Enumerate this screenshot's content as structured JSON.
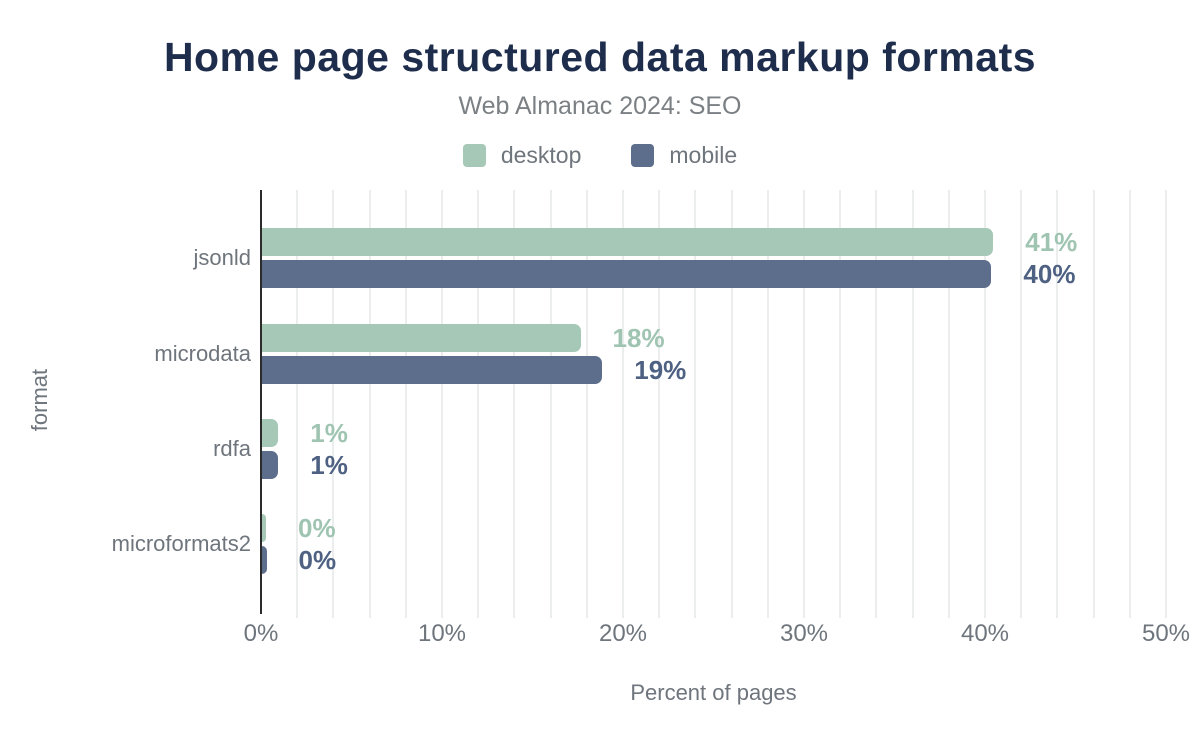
{
  "title": "Home page structured data markup formats",
  "subtitle": "Web Almanac 2024: SEO",
  "legend": {
    "items": [
      {
        "label": "desktop",
        "color": "#a6c8b6"
      },
      {
        "label": "mobile",
        "color": "#5d6e8c"
      }
    ]
  },
  "axes": {
    "x_label": "Percent of pages",
    "y_label": "format",
    "x_ticks": [
      "0%",
      "10%",
      "20%",
      "30%",
      "40%",
      "50%"
    ]
  },
  "chart_data": {
    "type": "bar",
    "orientation": "horizontal",
    "title": "Home page structured data markup formats",
    "subtitle": "Web Almanac 2024: SEO",
    "xlabel": "Percent of pages",
    "ylabel": "format",
    "xlim": [
      0,
      50
    ],
    "x_tick_values": [
      0,
      10,
      20,
      30,
      40,
      50
    ],
    "grid": "light vertical gridlines every 2%",
    "legend_position": "top-center",
    "categories": [
      "jsonld",
      "microdata",
      "rdfa",
      "microformats2"
    ],
    "series": [
      {
        "name": "desktop",
        "color": "#a6c8b6",
        "label_color": "#9fc4b1",
        "values": [
          41,
          18,
          1,
          0
        ],
        "data_labels": [
          "41%",
          "18%",
          "1%",
          "0%"
        ],
        "bar_length_pct_estimate": [
          40.4,
          17.6,
          0.9,
          0.2
        ]
      },
      {
        "name": "mobile",
        "color": "#5d6e8c",
        "label_color": "#4e6183",
        "values": [
          40,
          19,
          1,
          0
        ],
        "data_labels": [
          "40%",
          "19%",
          "1%",
          "0%"
        ],
        "bar_length_pct_estimate": [
          40.3,
          18.8,
          0.9,
          0.25
        ]
      }
    ]
  },
  "colors": {
    "background": "#ffffff",
    "title": "#1e2d4c",
    "subtitle": "#7b8084",
    "text_gray": "#6e757c",
    "axis_line": "#2b2b2b",
    "gridline": "#eceeee"
  }
}
